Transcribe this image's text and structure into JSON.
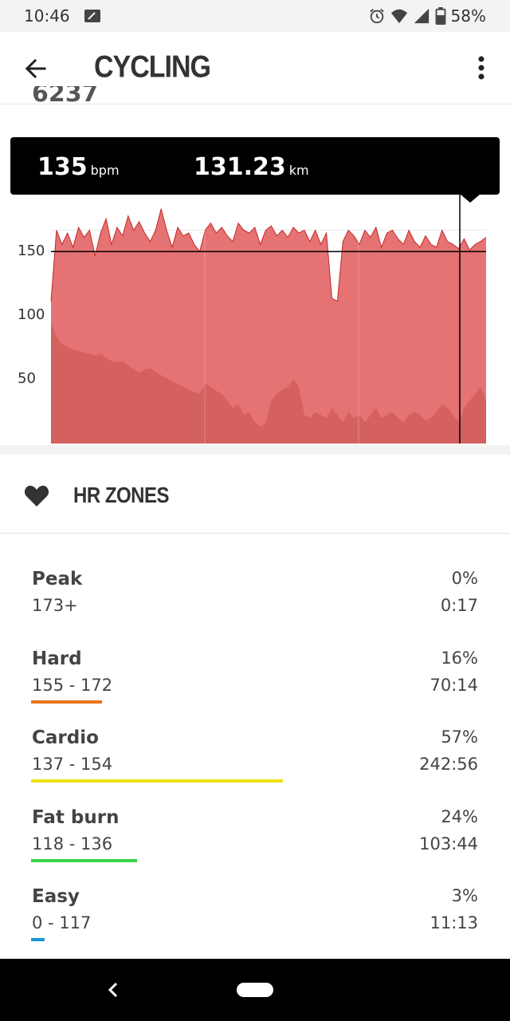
{
  "status_bar": {
    "time": "10:46",
    "battery_percent": "58%",
    "icons": [
      "notification-icon",
      "alarm-icon",
      "wifi-icon",
      "signal-icon",
      "battery-icon"
    ]
  },
  "app_bar": {
    "title": "CYCLING",
    "icons": [
      "back-arrow-icon",
      "more-vert-icon"
    ]
  },
  "scroll_peek": "6237",
  "chart": {
    "tooltip": {
      "heart_rate": "135",
      "heart_rate_unit": "bpm",
      "distance": "131.23",
      "distance_unit": "km"
    },
    "y_ticks": [
      "150",
      "100",
      "50"
    ],
    "colors": {
      "hr_fill": "#e57373",
      "hr_line": "#c62828",
      "elevation_fill": "#d46060",
      "cursor": "#000000"
    }
  },
  "chart_data": {
    "type": "area",
    "ylim": [
      0,
      175
    ],
    "grid": true,
    "series": [
      {
        "values": [
          100,
          150,
          140,
          148,
          138,
          152,
          145,
          150,
          132,
          148,
          158,
          140,
          152,
          146,
          160,
          150,
          156,
          148,
          142,
          150,
          165,
          150,
          138,
          152,
          146,
          148,
          140,
          135,
          150,
          155,
          148,
          152,
          146,
          142,
          155,
          150,
          148,
          152,
          140,
          150,
          153,
          146,
          150,
          145,
          152,
          148,
          150,
          142,
          150,
          140,
          148,
          102,
          100,
          142,
          150,
          146,
          140,
          150,
          145,
          152,
          138,
          148,
          150,
          144,
          140,
          150,
          142,
          138,
          146,
          140,
          138,
          150,
          142,
          140,
          137,
          144,
          136,
          140,
          142,
          145
        ]
      },
      {
        "values": [
          85,
          75,
          70,
          68,
          66,
          65,
          64,
          63,
          62,
          63,
          60,
          58,
          57,
          58,
          55,
          52,
          50,
          52,
          53,
          50,
          48,
          46,
          44,
          42,
          40,
          38,
          36,
          35,
          42,
          40,
          37,
          35,
          30,
          25,
          28,
          20,
          22,
          15,
          12,
          14,
          30,
          35,
          38,
          40,
          45,
          40,
          20,
          18,
          22,
          20,
          18,
          25,
          20,
          15,
          22,
          18,
          20,
          15,
          20,
          25,
          18,
          20,
          22,
          18,
          15,
          20,
          22,
          20,
          16,
          18,
          22,
          28,
          25,
          20,
          15,
          25,
          30,
          35,
          40,
          30
        ]
      }
    ],
    "cursor_label_hr": "135",
    "cursor_label_km": "131.23"
  },
  "hr_zones": {
    "title": "HR ZONES",
    "zones": [
      {
        "name": "Peak",
        "range": "173+",
        "percent": "0%",
        "time": "0:17",
        "fraction": 0.0,
        "color": ""
      },
      {
        "name": "Hard",
        "range": "155 - 172",
        "percent": "16%",
        "time": "70:14",
        "fraction": 0.16,
        "color": "#e8731c"
      },
      {
        "name": "Cardio",
        "range": "137 - 154",
        "percent": "57%",
        "time": "242:56",
        "fraction": 0.57,
        "color": "#f0e214"
      },
      {
        "name": "Fat burn",
        "range": "118 - 136",
        "percent": "24%",
        "time": "103:44",
        "fraction": 0.24,
        "color": "#3ad24a"
      },
      {
        "name": "Easy",
        "range": "0 - 117",
        "percent": "3%",
        "time": "11:13",
        "fraction": 0.03,
        "color": "#1996d8"
      }
    ]
  }
}
